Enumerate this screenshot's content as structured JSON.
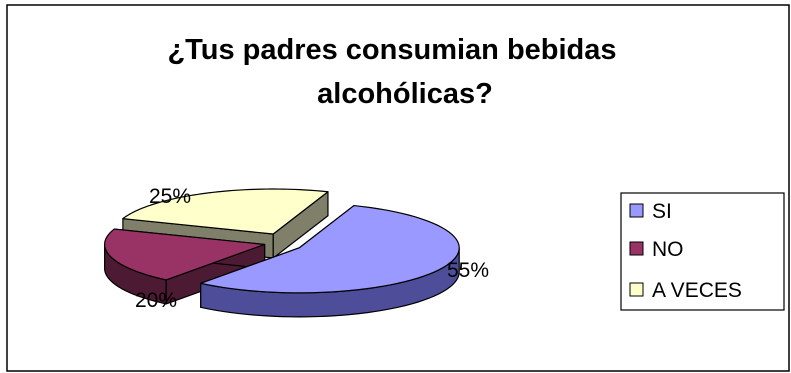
{
  "chart_data": {
    "type": "pie",
    "title": "¿Tus padres consumian bebidas alcohólicas?",
    "title_lines": [
      "¿Tus padres consumian bebidas",
      "alcohólicas?"
    ],
    "categories": [
      "SI",
      "NO",
      "A VECES"
    ],
    "values": [
      55,
      20,
      25
    ],
    "value_labels": [
      "55%",
      "20%",
      "25%"
    ],
    "colors": [
      "#9999ff",
      "#993366",
      "#ffffcc"
    ],
    "side_colors": [
      "#4d4d99",
      "#4d1a33",
      "#80806a"
    ],
    "exploded": true,
    "three_d": true,
    "legend": {
      "position": "right",
      "entries": [
        "SI",
        "NO",
        "A VECES"
      ]
    }
  }
}
